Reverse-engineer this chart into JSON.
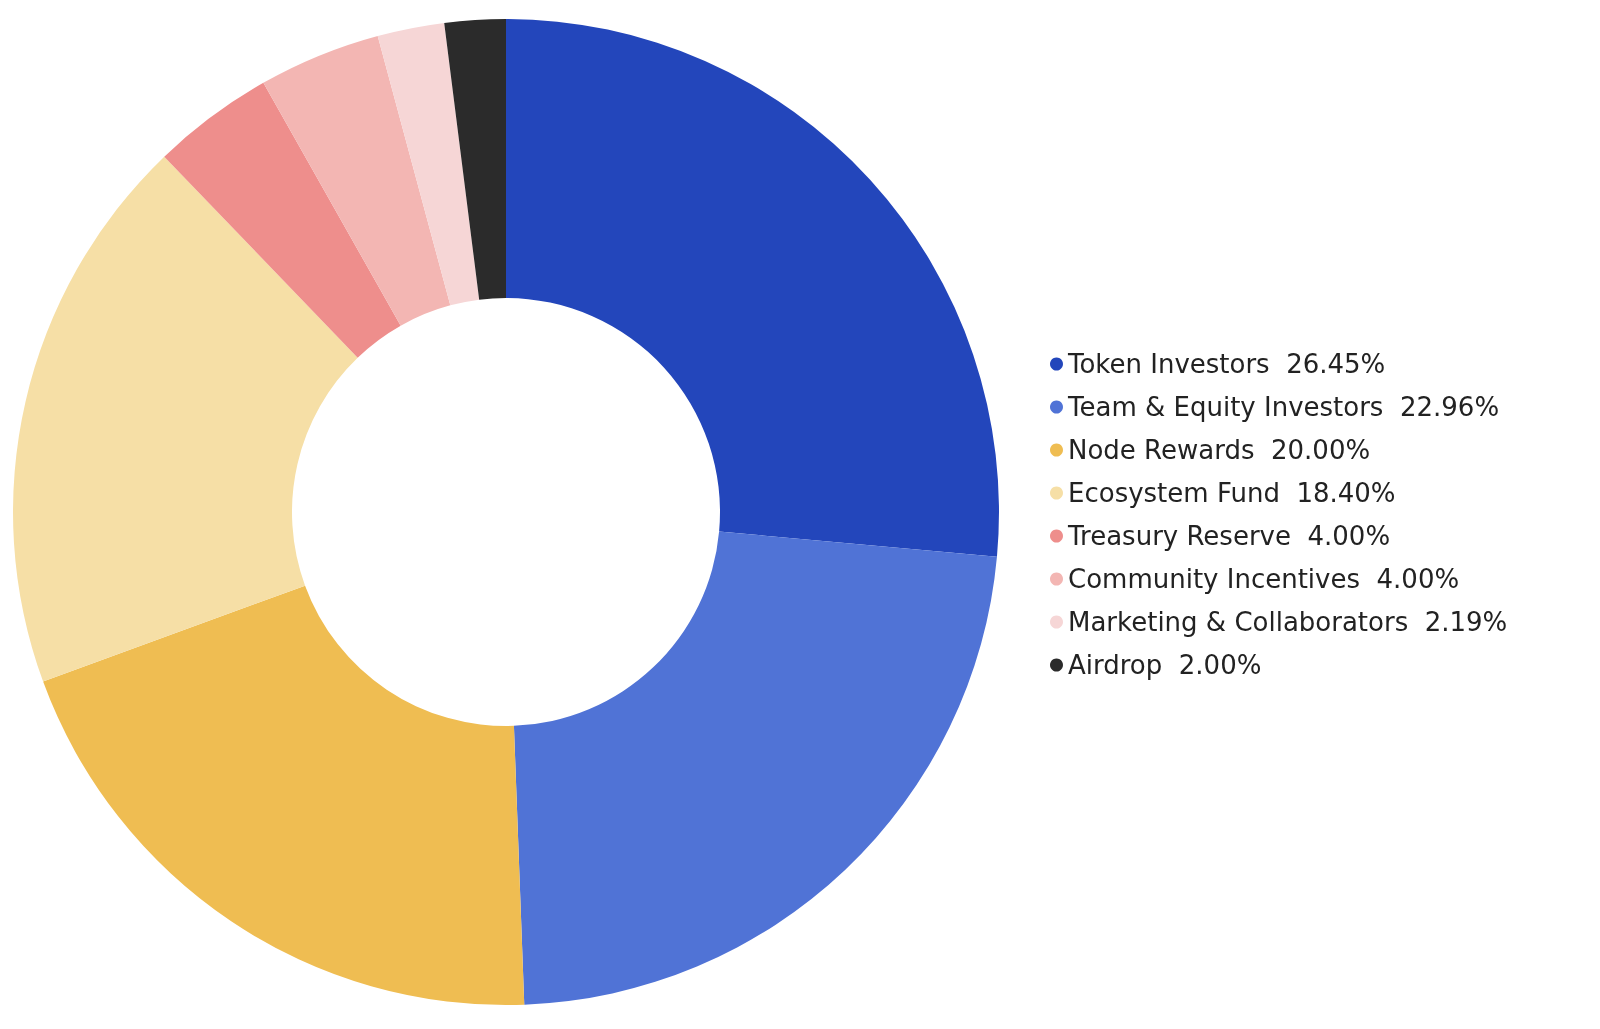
{
  "chart_data": {
    "type": "donut",
    "categories": [
      "Token Investors",
      "Team & Equity Investors",
      "Node Rewards",
      "Ecosystem Fund",
      "Treasury Reserve",
      "Community Incentives",
      "Marketing & Collaborators",
      "Airdrop"
    ],
    "values": [
      26.45,
      22.96,
      20.0,
      18.4,
      4.0,
      4.0,
      2.19,
      2.0
    ],
    "value_labels": [
      "26.45%",
      "22.96%",
      "20.00%",
      "18.40%",
      "4.00%",
      "4.00%",
      "2.19%",
      "2.00%"
    ],
    "colors": [
      "#2346bb",
      "#5073d6",
      "#efbd52",
      "#f6dfa6",
      "#ee8e8c",
      "#f3b6b3",
      "#f6d6d6",
      "#2b2b2b"
    ],
    "legend": "right"
  }
}
